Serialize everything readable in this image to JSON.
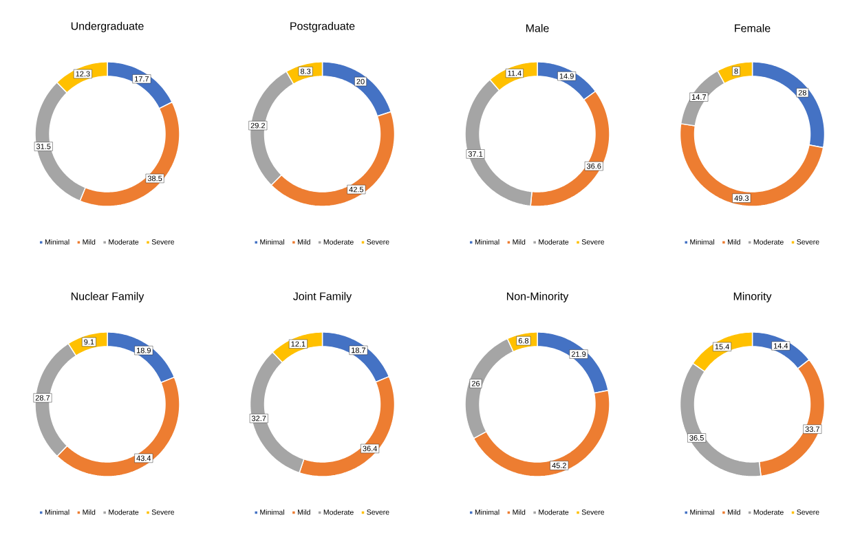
{
  "chart_data": [
    {
      "type": "donut",
      "title": "Undergraduate",
      "categories": [
        "Minimal",
        "Mild",
        "Moderate",
        "Severe"
      ],
      "values": [
        17.7,
        38.5,
        31.5,
        12.3
      ],
      "colors": [
        "#4472c4",
        "#ed7d31",
        "#a5a5a5",
        "#ffc000"
      ],
      "data_labels": true,
      "legend": "bottom"
    },
    {
      "type": "donut",
      "title": "Postgraduate",
      "categories": [
        "Minimal",
        "Mild",
        "Moderate",
        "Severe"
      ],
      "values": [
        20,
        42.5,
        29.2,
        8.3
      ],
      "colors": [
        "#4472c4",
        "#ed7d31",
        "#a5a5a5",
        "#ffc000"
      ],
      "data_labels": true,
      "legend": "bottom"
    },
    {
      "type": "donut",
      "title": "Male",
      "categories": [
        "Minimal",
        "Mild",
        "Moderate",
        "Severe"
      ],
      "values": [
        14.9,
        36.6,
        37.1,
        11.4
      ],
      "colors": [
        "#4472c4",
        "#ed7d31",
        "#a5a5a5",
        "#ffc000"
      ],
      "data_labels": true,
      "legend": "bottom"
    },
    {
      "type": "donut",
      "title": "Female",
      "categories": [
        "Minimal",
        "Mild",
        "Moderate",
        "Severe"
      ],
      "values": [
        28,
        49.3,
        14.7,
        8
      ],
      "colors": [
        "#4472c4",
        "#ed7d31",
        "#a5a5a5",
        "#ffc000"
      ],
      "data_labels": true,
      "legend": "bottom"
    },
    {
      "type": "donut",
      "title": "Nuclear Family",
      "categories": [
        "Minimal",
        "Mild",
        "Moderate",
        "Severe"
      ],
      "values": [
        18.9,
        43.4,
        28.7,
        9.1
      ],
      "colors": [
        "#4472c4",
        "#ed7d31",
        "#a5a5a5",
        "#ffc000"
      ],
      "data_labels": true,
      "legend": "bottom"
    },
    {
      "type": "donut",
      "title": "Joint Family",
      "categories": [
        "Minimal",
        "Mild",
        "Moderate",
        "Severe"
      ],
      "values": [
        18.7,
        36.4,
        32.7,
        12.1
      ],
      "colors": [
        "#4472c4",
        "#ed7d31",
        "#a5a5a5",
        "#ffc000"
      ],
      "data_labels": true,
      "legend": "bottom"
    },
    {
      "type": "donut",
      "title": "Non-Minority",
      "categories": [
        "Minimal",
        "Mild",
        "Moderate",
        "Severe"
      ],
      "values": [
        21.9,
        45.2,
        26,
        6.8
      ],
      "colors": [
        "#4472c4",
        "#ed7d31",
        "#a5a5a5",
        "#ffc000"
      ],
      "data_labels": true,
      "legend": "bottom"
    },
    {
      "type": "donut",
      "title": "Minority",
      "categories": [
        "Minimal",
        "Mild",
        "Moderate",
        "Severe"
      ],
      "values": [
        14.4,
        33.7,
        36.5,
        15.4
      ],
      "colors": [
        "#4472c4",
        "#ed7d31",
        "#a5a5a5",
        "#ffc000"
      ],
      "data_labels": true,
      "legend": "bottom"
    }
  ]
}
